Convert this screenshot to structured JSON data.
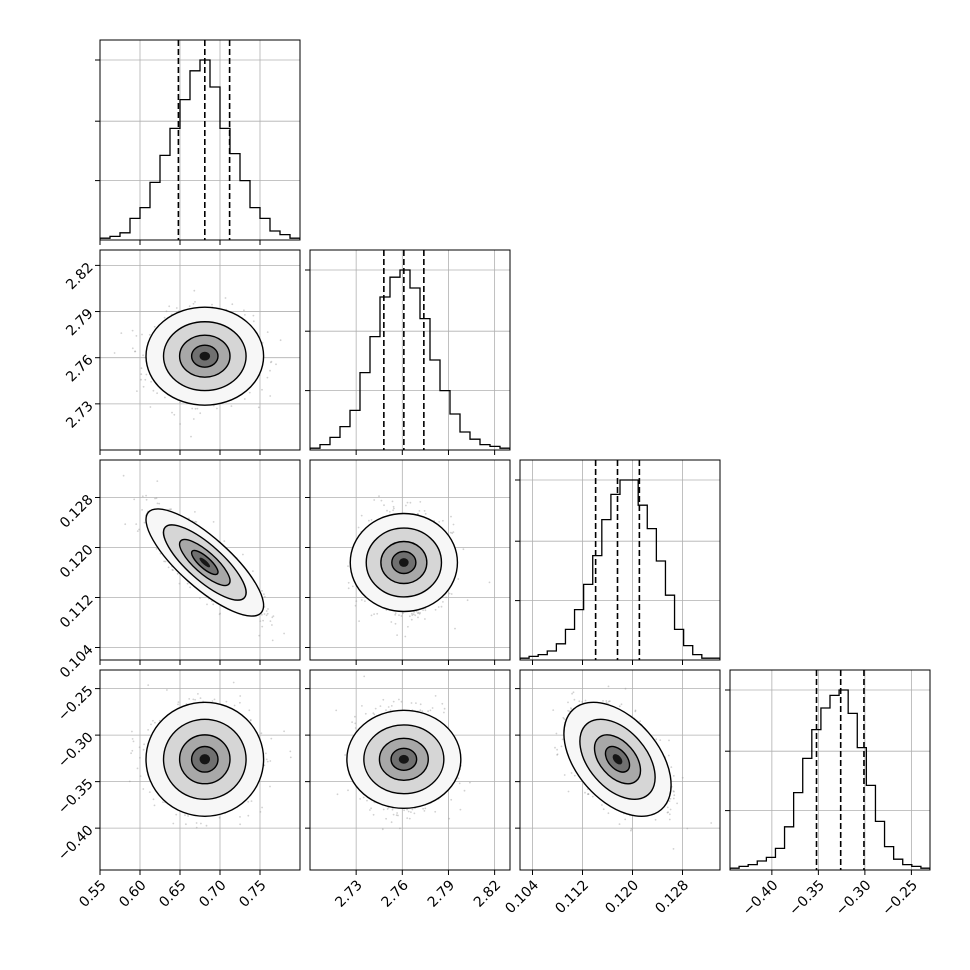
{
  "chart_data": {
    "type": "corner",
    "variables": [
      {
        "range": [
          0.55,
          0.8
        ],
        "ticks": [
          0.55,
          0.6,
          0.65,
          0.7,
          0.75
        ],
        "tick_labels": [
          "0.55",
          "0.60",
          "0.65",
          "0.70",
          "0.75"
        ],
        "quantiles": [
          0.648,
          0.681,
          0.712
        ],
        "mean": 0.681,
        "sd": 0.03,
        "hist": [
          0.01,
          0.02,
          0.04,
          0.12,
          0.18,
          0.32,
          0.47,
          0.62,
          0.78,
          0.94,
          1.0,
          0.85,
          0.62,
          0.48,
          0.33,
          0.18,
          0.12,
          0.05,
          0.03,
          0.01
        ]
      },
      {
        "range": [
          2.7,
          2.83
        ],
        "ticks": [
          2.73,
          2.76,
          2.79,
          2.82
        ],
        "tick_labels": [
          "2.73",
          "2.76",
          "2.79",
          "2.82"
        ],
        "quantiles": [
          2.748,
          2.761,
          2.774
        ],
        "mean": 2.761,
        "sd": 0.013,
        "hist": [
          0.01,
          0.03,
          0.07,
          0.13,
          0.22,
          0.43,
          0.63,
          0.85,
          0.96,
          1.0,
          0.9,
          0.73,
          0.5,
          0.33,
          0.2,
          0.1,
          0.06,
          0.03,
          0.02,
          0.01
        ]
      },
      {
        "range": [
          0.102,
          0.134
        ],
        "ticks": [
          0.104,
          0.112,
          0.12,
          0.128
        ],
        "tick_labels": [
          "0.104",
          "0.112",
          "0.120",
          "0.128"
        ],
        "quantiles": [
          0.1141,
          0.1176,
          0.1211
        ],
        "mean": 0.1176,
        "sd": 0.0035,
        "hist": [
          0.01,
          0.02,
          0.03,
          0.05,
          0.09,
          0.17,
          0.28,
          0.42,
          0.58,
          0.78,
          0.92,
          1.0,
          1.0,
          0.86,
          0.73,
          0.55,
          0.36,
          0.17,
          0.08,
          0.03,
          0.01,
          0.01
        ]
      },
      {
        "range": [
          -0.445,
          -0.23
        ],
        "ticks": [
          -0.4,
          -0.35,
          -0.3,
          -0.25
        ],
        "tick_labels": [
          "−0.40",
          "−0.35",
          "−0.30",
          "−0.25"
        ],
        "quantiles": [
          -0.352,
          -0.326,
          -0.301
        ],
        "mean": -0.326,
        "sd": 0.025,
        "hist": [
          0.01,
          0.02,
          0.03,
          0.05,
          0.07,
          0.12,
          0.24,
          0.43,
          0.62,
          0.78,
          0.9,
          0.97,
          1.0,
          0.87,
          0.68,
          0.47,
          0.27,
          0.13,
          0.06,
          0.03,
          0.02,
          0.01
        ]
      }
    ],
    "correlations": [
      [
        1.0,
        0.0,
        -0.8,
        0.0
      ],
      [
        0.0,
        1.0,
        0.0,
        0.0
      ],
      [
        -0.8,
        0.0,
        1.0,
        -0.45
      ],
      [
        0.0,
        0.0,
        -0.45,
        1.0
      ]
    ],
    "grid": true,
    "quantile_line_style": "dashed"
  }
}
